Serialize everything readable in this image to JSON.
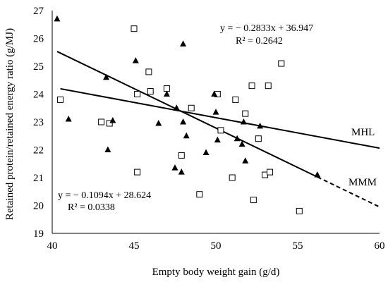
{
  "chart_data": {
    "type": "scatter",
    "xlabel": "Empty body weight gain (g/d)",
    "ylabel": "Retained protein/retained energy ratio (g/MJ)",
    "xlim": [
      40,
      60
    ],
    "ylim": [
      19,
      27
    ],
    "xticks": [
      40,
      45,
      50,
      55,
      60
    ],
    "yticks": [
      19,
      20,
      21,
      22,
      23,
      24,
      25,
      26,
      27
    ],
    "grid": false,
    "series": [
      {
        "name": "MHL",
        "marker": "open-square",
        "color": "#000000",
        "points": [
          [
            40.5,
            23.8
          ],
          [
            43.0,
            23.0
          ],
          [
            43.5,
            22.95
          ],
          [
            45.0,
            26.35
          ],
          [
            45.2,
            24.0
          ],
          [
            45.2,
            21.2
          ],
          [
            45.9,
            24.8
          ],
          [
            46.0,
            24.1
          ],
          [
            47.0,
            24.2
          ],
          [
            47.9,
            21.8
          ],
          [
            48.5,
            23.5
          ],
          [
            49.0,
            20.4
          ],
          [
            50.1,
            24.0
          ],
          [
            50.3,
            22.7
          ],
          [
            51.0,
            21.0
          ],
          [
            51.2,
            23.8
          ],
          [
            51.8,
            23.3
          ],
          [
            52.2,
            24.3
          ],
          [
            52.3,
            20.2
          ],
          [
            52.6,
            22.4
          ],
          [
            53.0,
            21.1
          ],
          [
            53.2,
            24.3
          ],
          [
            53.3,
            21.2
          ],
          [
            54.0,
            25.1
          ],
          [
            55.1,
            19.8
          ]
        ],
        "trendline": {
          "equation": "y = − 0.1094x + 28.624",
          "r2": "R² = 0.0338",
          "slope": -0.1094,
          "intercept": 28.624,
          "x_range": [
            40.5,
            60
          ],
          "style": "solid",
          "label": "MHL"
        }
      },
      {
        "name": "MMM",
        "marker": "filled-triangle",
        "color": "#000000",
        "points": [
          [
            40.3,
            26.7
          ],
          [
            41.0,
            23.1
          ],
          [
            43.3,
            24.6
          ],
          [
            43.4,
            22.0
          ],
          [
            43.7,
            23.05
          ],
          [
            45.1,
            25.2
          ],
          [
            46.5,
            22.95
          ],
          [
            47.0,
            24.0
          ],
          [
            47.5,
            21.35
          ],
          [
            47.6,
            23.5
          ],
          [
            47.9,
            21.2
          ],
          [
            48.0,
            23.0
          ],
          [
            48.0,
            25.8
          ],
          [
            48.2,
            22.5
          ],
          [
            49.4,
            21.9
          ],
          [
            49.9,
            24.0
          ],
          [
            50.0,
            23.35
          ],
          [
            50.1,
            22.35
          ],
          [
            51.3,
            22.4
          ],
          [
            51.6,
            22.2
          ],
          [
            51.7,
            23.0
          ],
          [
            51.8,
            21.6
          ],
          [
            52.7,
            22.85
          ],
          [
            56.2,
            21.1
          ]
        ],
        "trendline": {
          "equation": "y = − 0.2833x + 36.947",
          "r2": "R² = 0.2642",
          "slope": -0.2833,
          "intercept": 36.947,
          "x_range": [
            40.3,
            56.2
          ],
          "extend_to": 60,
          "style": "solid-then-dashed",
          "label": "MMM"
        }
      }
    ]
  }
}
